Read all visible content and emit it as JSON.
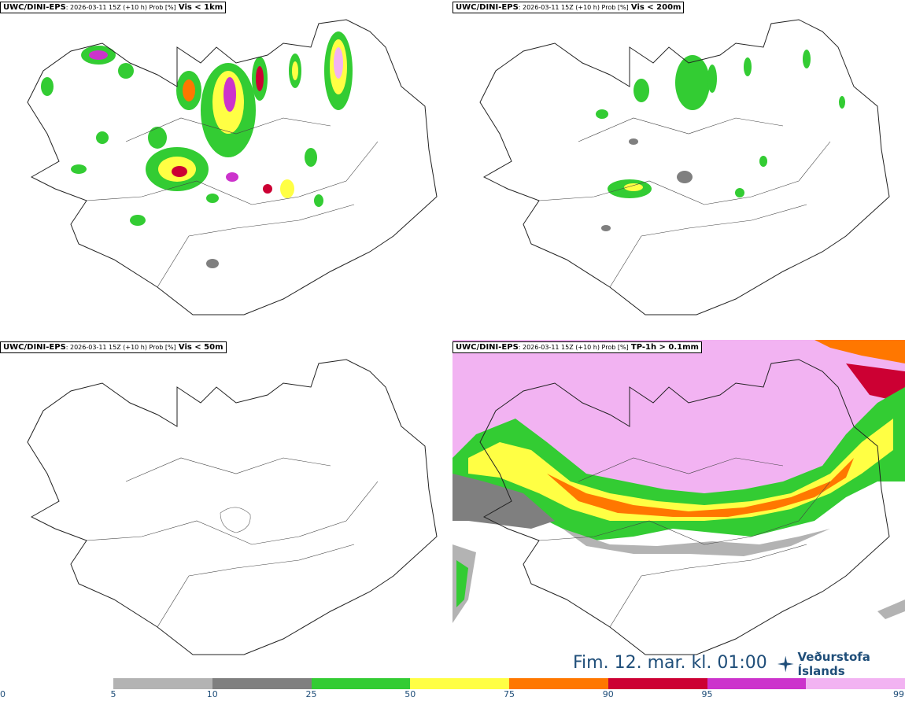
{
  "panels": [
    {
      "model": "UWC/DINI-EPS",
      "info": ": 2026-03-11 15Z (+10 h) Prob [%]",
      "field": "Vis < 1km"
    },
    {
      "model": "UWC/DINI-EPS",
      "info": ": 2026-03-11 15Z (+10 h) Prob [%]",
      "field": "Vis < 200m"
    },
    {
      "model": "UWC/DINI-EPS",
      "info": ": 2026-03-11 15Z (+10 h) Prob [%]",
      "field": "Vis < 50m"
    },
    {
      "model": "UWC/DINI-EPS",
      "info": ": 2026-03-11 15Z (+10 h) Prob [%]",
      "field": "TP-1h > 0.1mm"
    }
  ],
  "valid_time": "Fim. 12. mar. kl. 01:00",
  "logo_text": "Veðurstofa Íslands",
  "colorbar": {
    "ticks": [
      "0",
      "5",
      "10",
      "25",
      "50",
      "75",
      "90",
      "95",
      "99"
    ],
    "bins": [
      {
        "from": 5,
        "to": 10,
        "color": "#b3b3b3"
      },
      {
        "from": 10,
        "to": 25,
        "color": "#7f7f7f"
      },
      {
        "from": 25,
        "to": 50,
        "color": "#33cc33"
      },
      {
        "from": 50,
        "to": 75,
        "color": "#ffff44"
      },
      {
        "from": 75,
        "to": 90,
        "color": "#ff7700"
      },
      {
        "from": 90,
        "to": 95,
        "color": "#cc0033"
      },
      {
        "from": 95,
        "to": 99,
        "color": "#cc33cc"
      },
      {
        "from": 99,
        "to": 100,
        "color": "#f2b3f2"
      }
    ]
  }
}
